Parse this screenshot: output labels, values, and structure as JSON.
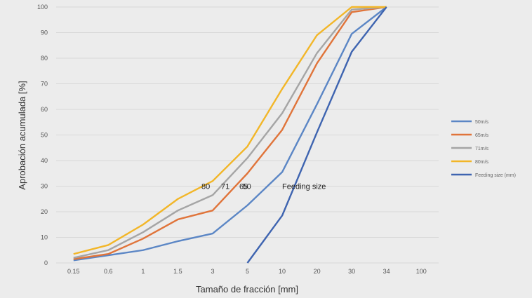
{
  "chart_data": {
    "type": "line",
    "title": "",
    "xlabel": "Tamaño de fracción [mm]",
    "ylabel": "Aprobación acumulada [%]",
    "x_scale": "categorical",
    "categories": [
      "0.15",
      "0.6",
      "1",
      "1.5",
      "3",
      "5",
      "10",
      "20",
      "30",
      "34",
      "100"
    ],
    "ylim": [
      0,
      100
    ],
    "yticks": [
      0,
      10,
      20,
      30,
      40,
      50,
      60,
      70,
      80,
      90,
      100
    ],
    "grid": "horizontal",
    "legend_position": "right",
    "series": [
      {
        "name": "50m/s",
        "color": "#5b86c5",
        "values": [
          1,
          3,
          5,
          8.5,
          11.5,
          22.5,
          35.5,
          62,
          89.5,
          100,
          null
        ]
      },
      {
        "name": "65m/s",
        "color": "#e0743a",
        "values": [
          1.5,
          3.5,
          9.5,
          17,
          20.5,
          35,
          52,
          78,
          98,
          100,
          null
        ]
      },
      {
        "name": "71m/s",
        "color": "#a5a5a5",
        "values": [
          2,
          5,
          12,
          20.5,
          26.5,
          41,
          58.5,
          82,
          99,
          100,
          null
        ]
      },
      {
        "name": "80m/s",
        "color": "#f2b628",
        "values": [
          3.5,
          7,
          15,
          25,
          32,
          45.5,
          68,
          89,
          100,
          100,
          null
        ]
      },
      {
        "name": "Feeding size (mm)",
        "color": "#3e64b0",
        "values": [
          null,
          null,
          null,
          null,
          null,
          0,
          18.5,
          51,
          82.5,
          100,
          null
        ]
      }
    ],
    "annotations": [
      {
        "text": "80",
        "x_index": 4,
        "y": 30
      },
      {
        "text": "71",
        "x_index": 4,
        "y": 30
      },
      {
        "text": "65",
        "x_index": 4,
        "y": 30
      },
      {
        "text": "50",
        "x_index": 5,
        "y": 30
      },
      {
        "text": "Feeding size",
        "x_index": 6,
        "y": 30
      }
    ]
  }
}
